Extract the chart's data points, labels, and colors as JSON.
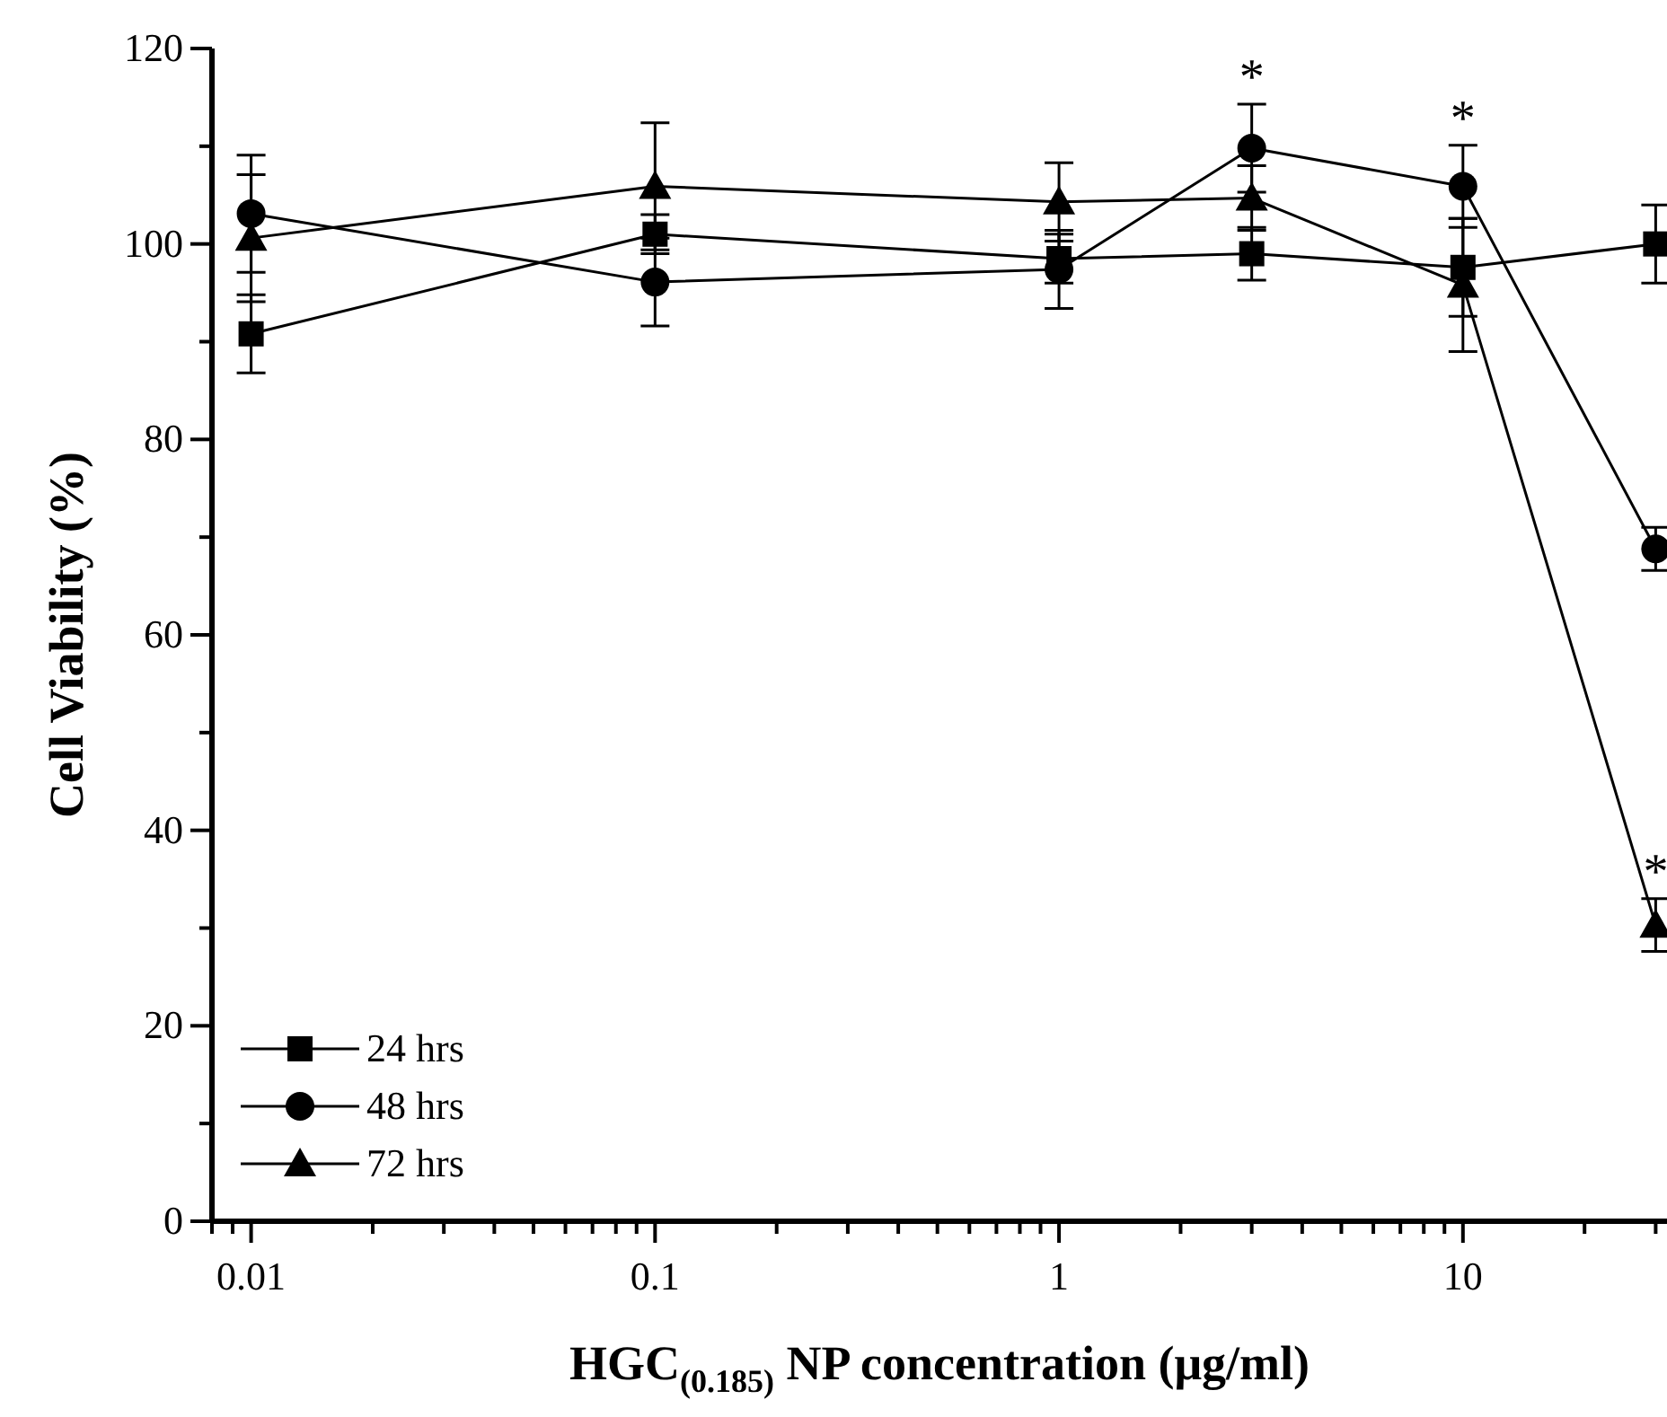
{
  "chart_data": {
    "type": "line",
    "xlabel": "HGC$_{(0.185)}$ NP concentration (μg/ml)",
    "ylabel": "Cell Viability (%)",
    "x": [
      0.01,
      0.1,
      1,
      3,
      10,
      30
    ],
    "series": [
      {
        "name": "24 hrs",
        "color": "#000000",
        "marker": "square",
        "values": [
          90.8,
          101.0,
          98.5,
          99.0,
          97.6,
          100.0
        ],
        "errors": [
          4,
          2,
          2.5,
          2.7,
          5,
          4
        ]
      },
      {
        "name": "48 hrs",
        "color": "#000000",
        "marker": "circle",
        "values": [
          103.1,
          96.1,
          97.4,
          109.8,
          105.9,
          68.8
        ],
        "errors": [
          6,
          4.5,
          4,
          4.5,
          4.2,
          2.2
        ]
      },
      {
        "name": "72 hrs",
        "color": "#000000",
        "marker": "triangle",
        "values": [
          100.6,
          105.9,
          104.3,
          104.7,
          95.8,
          30.3
        ],
        "errors": [
          6.5,
          6.5,
          4,
          3.3,
          6.8,
          2.7
        ]
      }
    ],
    "log": "x",
    "xlim": [
      0.008,
      32
    ],
    "ylim": [
      0,
      120
    ],
    "xticks": [
      {
        "value": 0.008,
        "label": null
      },
      {
        "value": 0.009,
        "label": null
      },
      0.01,
      {
        "value": 0.02,
        "label": null
      },
      {
        "value": 0.03,
        "label": null
      },
      {
        "value": 0.04,
        "label": null
      },
      {
        "value": 0.05,
        "label": null
      },
      {
        "value": 0.06,
        "label": null
      },
      {
        "value": 0.07,
        "label": null
      },
      {
        "value": 0.08,
        "label": null
      },
      {
        "value": 0.09,
        "label": null
      },
      0.1,
      {
        "value": 0.2,
        "label": null
      },
      {
        "value": 0.3,
        "label": null
      },
      {
        "value": 0.4,
        "label": null
      },
      {
        "value": 0.5,
        "label": null
      },
      {
        "value": 0.6,
        "label": null
      },
      {
        "value": 0.7,
        "label": null
      },
      {
        "value": 0.8,
        "label": null
      },
      {
        "value": 0.9,
        "label": null
      },
      1,
      {
        "value": 2,
        "label": null
      },
      {
        "value": 3,
        "label": null
      },
      {
        "value": 4,
        "label": null
      },
      {
        "value": 5,
        "label": null
      },
      {
        "value": 6,
        "label": null
      },
      {
        "value": 7,
        "label": null
      },
      {
        "value": 8,
        "label": null
      },
      {
        "value": 9,
        "label": null
      },
      10,
      {
        "value": 20,
        "label": null
      },
      {
        "value": 30,
        "label": null
      }
    ],
    "yticks": [
      0,
      {
        "value": 10,
        "label": null
      },
      20,
      {
        "value": 30,
        "label": null
      },
      40,
      {
        "value": 50,
        "label": null
      },
      60,
      {
        "value": 70,
        "label": null
      },
      80,
      {
        "value": 90,
        "label": null
      },
      100,
      {
        "value": 110,
        "label": null
      },
      120
    ],
    "grid": false,
    "legend": "bottom left",
    "line_style": "solid",
    "annotations": [
      {
        "text": "*",
        "x": 3,
        "y": 109.8
      },
      {
        "text": "*",
        "x": 10,
        "y": 105.9
      },
      {
        "text": "*",
        "x": 30,
        "y": 30.3
      }
    ]
  }
}
